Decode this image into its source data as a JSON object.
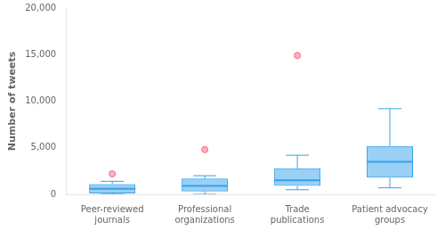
{
  "chart_data": {
    "type": "box",
    "categories": [
      "Peer-reviewed\njournals",
      "Professional\norganizations",
      "Trade\npublications",
      "Patient advocacy\ngroups"
    ],
    "q1": [
      100,
      300,
      900,
      1800
    ],
    "median": [
      600,
      900,
      1500,
      3500
    ],
    "q3": [
      1100,
      1700,
      2800,
      5200
    ],
    "whisker_low": [
      0,
      0,
      500,
      700
    ],
    "whisker_high": [
      1400,
      2000,
      4200,
      9200
    ],
    "fliers": [
      [
        2200
      ],
      [
        4800
      ],
      [
        14900
      ],
      []
    ],
    "ylabel": "Number of tweets",
    "ylim": [
      0,
      20000
    ],
    "yticks": [
      0,
      {
        "value": 5000,
        "label": "5,000"
      },
      {
        "value": 10000,
        "label": "10,000"
      },
      {
        "value": 15000,
        "label": "15,000"
      },
      {
        "value": 20000,
        "label": "20,000"
      }
    ],
    "grid": false
  }
}
